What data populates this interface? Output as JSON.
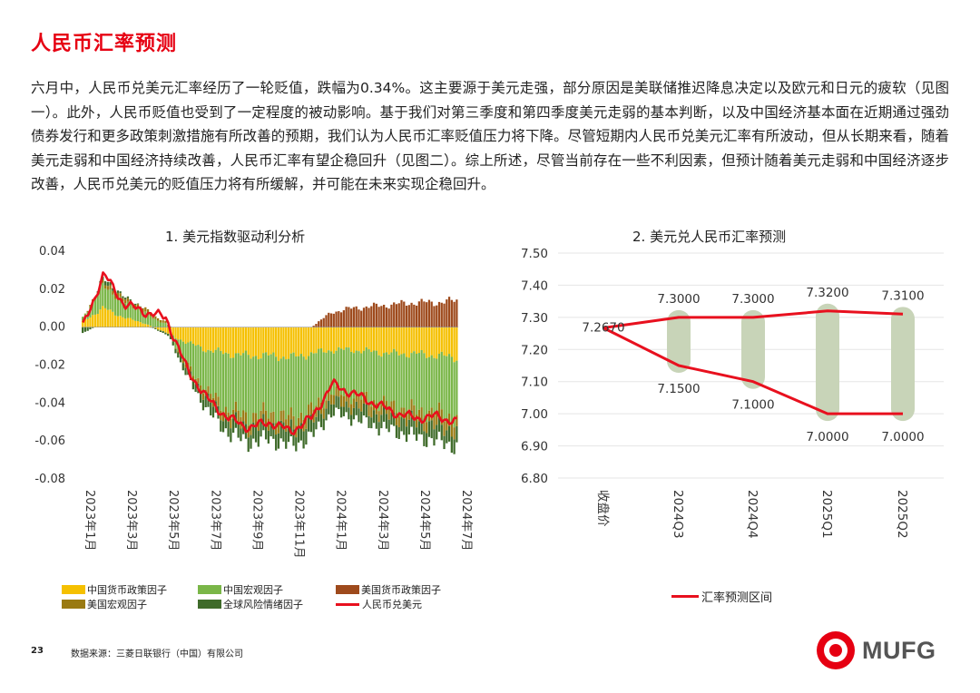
{
  "page": {
    "title": "人民币汇率预测",
    "paragraph": "六月中，人民币兑美元汇率经历了一轮贬值，跌幅为0.34%。这主要源于美元走强，部分原因是美联储推迟降息决定以及欧元和日元的疲软（见图一）。此外，人民币贬值也受到了一定程度的被动影响。基于我们对第三季度和第四季度美元走弱的基本判断，以及中国经济基本面在近期通过强劲债券发行和更多政策刺激措施有所改善的预期，我们认为人民币汇率贬值压力将下降。尽管短期内人民币兑美元汇率有所波动，但从长期来看，随着美元走弱和中国经济持续改善，人民币汇率有望企稳回升（见图二）。综上所述，尽管当前存在一些不利因素，但预计随着美元走弱和中国经济逐步改善，人民币兑美元的贬值压力将有所缓解，并可能在未来实现企稳回升。",
    "page_number": "23",
    "source": "数据来源：三菱日联银行（中国）有限公司",
    "logo_text": "MUFG"
  },
  "colors": {
    "title_red": "#e60012",
    "cn_policy": "#f5c000",
    "cn_macro": "#7ab648",
    "us_policy": "#9e4a1c",
    "us_macro": "#9a7a12",
    "risk": "#3f6b2a",
    "cny": "#e8101e",
    "band": "#c8d4b8"
  },
  "chart_data": [
    {
      "type": "bar",
      "title": "1. 美元指数驱动利分析",
      "ylim": [
        -0.08,
        0.04
      ],
      "yticks": [
        "0.04",
        "0.02",
        "0.00",
        "-0.02",
        "-0.04",
        "-0.06",
        "-0.08"
      ],
      "ytick_values": [
        0.04,
        0.02,
        0.0,
        -0.02,
        -0.04,
        -0.06,
        -0.08
      ],
      "categories": [
        "2023年1月",
        "2023年3月",
        "2023年5月",
        "2023年7月",
        "2023年9月",
        "2023年11月",
        "2024年1月",
        "2024年3月",
        "2024年5月",
        "2024年7月"
      ],
      "legend": [
        {
          "name": "中国货币政策因子",
          "key": "cn_policy",
          "kind": "box"
        },
        {
          "name": "中国宏观因子",
          "key": "cn_macro",
          "kind": "box"
        },
        {
          "name": "美国货币政策因子",
          "key": "us_policy",
          "kind": "box"
        },
        {
          "name": "美国宏观因子",
          "key": "us_macro",
          "kind": "box"
        },
        {
          "name": "全球风险情绪因子",
          "key": "risk",
          "kind": "box"
        },
        {
          "name": "人民币兑美元",
          "key": "cny",
          "kind": "line"
        }
      ],
      "series_keypoints": {
        "note": "monthly approximate values (2023-01 .. 2024-07) read from chart",
        "cny": [
          0.0,
          0.028,
          0.012,
          0.008,
          0.005,
          -0.022,
          -0.038,
          -0.048,
          -0.053,
          -0.05,
          -0.055,
          -0.048,
          -0.03,
          -0.035,
          -0.04,
          -0.045,
          -0.048,
          -0.047,
          -0.05
        ],
        "cn_policy": [
          0.003,
          0.01,
          0.005,
          0.002,
          -0.003,
          -0.008,
          -0.012,
          -0.014,
          -0.015,
          -0.015,
          -0.016,
          -0.014,
          -0.012,
          -0.012,
          -0.013,
          -0.014,
          -0.014,
          -0.015,
          -0.016
        ],
        "cn_macro": [
          0.002,
          0.012,
          0.008,
          0.006,
          0.002,
          -0.012,
          -0.022,
          -0.03,
          -0.032,
          -0.03,
          -0.032,
          -0.03,
          -0.022,
          -0.024,
          -0.026,
          -0.028,
          -0.03,
          -0.03,
          -0.032
        ],
        "us_policy": [
          0.0,
          0.0,
          0.0,
          0.0,
          0.0,
          0.0,
          0.0,
          0.0,
          0.0,
          0.0,
          0.0,
          0.0,
          0.008,
          0.01,
          0.011,
          0.012,
          0.013,
          0.013,
          0.014
        ],
        "us_macro": [
          0.0,
          0.002,
          0.002,
          0.002,
          0.001,
          -0.002,
          -0.004,
          -0.005,
          -0.006,
          -0.006,
          -0.006,
          -0.006,
          -0.005,
          -0.006,
          -0.006,
          -0.006,
          -0.006,
          -0.007,
          -0.007
        ],
        "risk": [
          -0.003,
          0.002,
          0.001,
          0.0,
          -0.001,
          -0.004,
          -0.006,
          -0.007,
          -0.008,
          -0.008,
          -0.009,
          -0.008,
          -0.006,
          -0.006,
          -0.007,
          -0.007,
          -0.008,
          -0.008,
          -0.008
        ]
      }
    },
    {
      "type": "line",
      "title": "2. 美元兑人民币汇率预测",
      "ylim": [
        6.8,
        7.5
      ],
      "yticks": [
        "7.50",
        "7.40",
        "7.30",
        "7.20",
        "7.10",
        "7.00",
        "6.90",
        "6.80"
      ],
      "ytick_values": [
        7.5,
        7.4,
        7.3,
        7.2,
        7.1,
        7.0,
        6.9,
        6.8
      ],
      "categories": [
        "收盘价",
        "2024Q3",
        "2024Q4",
        "2025Q1",
        "2025Q2"
      ],
      "series": [
        {
          "name": "汇率预测区间 (上限)",
          "values": [
            7.267,
            7.3,
            7.3,
            7.32,
            7.31
          ],
          "labels": [
            "7.2670",
            "7.3000",
            "7.3000",
            "7.3200",
            "7.3100"
          ]
        },
        {
          "name": "汇率预测区间 (下限)",
          "values": [
            7.267,
            7.15,
            7.1,
            7.0,
            7.0
          ],
          "labels": [
            "",
            "7.1500",
            "7.1000",
            "7.0000",
            "7.0000"
          ]
        }
      ],
      "legend": [
        {
          "name": "汇率预测区间",
          "key": "cny",
          "kind": "line"
        }
      ]
    }
  ]
}
